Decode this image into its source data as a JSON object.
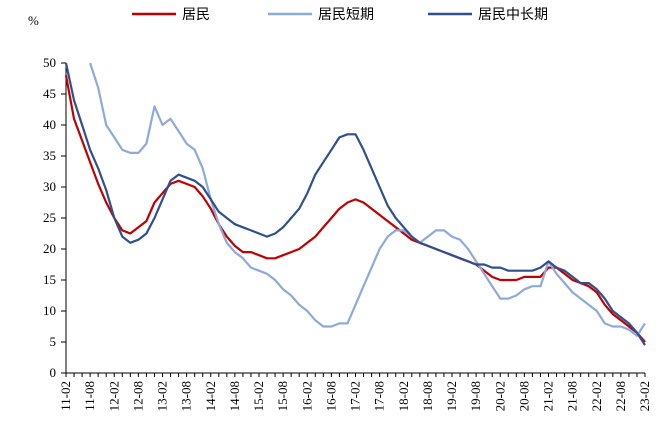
{
  "chart_data": {
    "type": "line",
    "title": "",
    "unit": "%",
    "xlabel": "",
    "ylabel": "",
    "ylim": [
      0,
      50
    ],
    "yticks": [
      0,
      5,
      10,
      15,
      20,
      25,
      30,
      35,
      40,
      45,
      50
    ],
    "x_start": "11-02",
    "x_end": "23-02",
    "xticks": [
      "11-02",
      "11-08",
      "12-02",
      "12-08",
      "13-02",
      "13-08",
      "14-02",
      "14-08",
      "15-02",
      "15-08",
      "16-02",
      "16-08",
      "17-02",
      "17-08",
      "18-02",
      "18-08",
      "19-02",
      "19-08",
      "20-02",
      "20-08",
      "21-02",
      "21-08",
      "22-02",
      "22-08",
      "23-02"
    ],
    "grid": false,
    "legend_position": "top",
    "series": [
      {
        "name": "居民",
        "color": "#c00000",
        "points": [
          [
            "11-02",
            48
          ],
          [
            "11-04",
            41
          ],
          [
            "11-06",
            37.5
          ],
          [
            "11-08",
            34
          ],
          [
            "11-10",
            30.5
          ],
          [
            "11-12",
            27.5
          ],
          [
            "12-02",
            25
          ],
          [
            "12-04",
            23
          ],
          [
            "12-06",
            22.5
          ],
          [
            "12-08",
            23.5
          ],
          [
            "12-10",
            24.5
          ],
          [
            "12-12",
            27.5
          ],
          [
            "13-02",
            29
          ],
          [
            "13-04",
            30.5
          ],
          [
            "13-06",
            31
          ],
          [
            "13-08",
            30.5
          ],
          [
            "13-10",
            30
          ],
          [
            "13-12",
            28.5
          ],
          [
            "14-02",
            26.5
          ],
          [
            "14-04",
            24
          ],
          [
            "14-06",
            22
          ],
          [
            "14-08",
            20.5
          ],
          [
            "14-10",
            19.5
          ],
          [
            "14-12",
            19.5
          ],
          [
            "15-02",
            19
          ],
          [
            "15-04",
            18.5
          ],
          [
            "15-06",
            18.5
          ],
          [
            "15-08",
            19
          ],
          [
            "15-10",
            19.5
          ],
          [
            "15-12",
            20
          ],
          [
            "16-02",
            21
          ],
          [
            "16-04",
            22
          ],
          [
            "16-06",
            23.5
          ],
          [
            "16-08",
            25
          ],
          [
            "16-10",
            26.5
          ],
          [
            "16-12",
            27.5
          ],
          [
            "17-02",
            28
          ],
          [
            "17-04",
            27.5
          ],
          [
            "17-06",
            26.5
          ],
          [
            "17-08",
            25.5
          ],
          [
            "17-10",
            24.5
          ],
          [
            "17-12",
            23.5
          ],
          [
            "18-02",
            22.5
          ],
          [
            "18-04",
            21.5
          ],
          [
            "18-06",
            21
          ],
          [
            "18-08",
            20.5
          ],
          [
            "18-10",
            20
          ],
          [
            "18-12",
            19.5
          ],
          [
            "19-02",
            19
          ],
          [
            "19-04",
            18.5
          ],
          [
            "19-06",
            18
          ],
          [
            "19-08",
            17.5
          ],
          [
            "19-10",
            16.5
          ],
          [
            "19-12",
            15.5
          ],
          [
            "20-02",
            15
          ],
          [
            "20-04",
            15
          ],
          [
            "20-06",
            15
          ],
          [
            "20-08",
            15.5
          ],
          [
            "20-10",
            15.5
          ],
          [
            "20-12",
            15.5
          ],
          [
            "21-02",
            17
          ],
          [
            "21-04",
            17
          ],
          [
            "21-06",
            16
          ],
          [
            "21-08",
            15
          ],
          [
            "21-10",
            14.5
          ],
          [
            "21-12",
            14
          ],
          [
            "22-02",
            13
          ],
          [
            "22-04",
            11
          ],
          [
            "22-06",
            9.5
          ],
          [
            "22-08",
            8.5
          ],
          [
            "22-10",
            7.5
          ],
          [
            "22-12",
            6.5
          ],
          [
            "23-02",
            5
          ]
        ]
      },
      {
        "name": "居民短期",
        "color": "#8ea9db",
        "points": [
          [
            "11-08",
            50
          ],
          [
            "11-10",
            46
          ],
          [
            "11-12",
            40
          ],
          [
            "12-02",
            38
          ],
          [
            "12-04",
            36
          ],
          [
            "12-06",
            35.5
          ],
          [
            "12-08",
            35.5
          ],
          [
            "12-10",
            37
          ],
          [
            "12-12",
            43
          ],
          [
            "13-02",
            40
          ],
          [
            "13-04",
            41
          ],
          [
            "13-06",
            39
          ],
          [
            "13-08",
            37
          ],
          [
            "13-10",
            36
          ],
          [
            "13-12",
            33
          ],
          [
            "14-02",
            28
          ],
          [
            "14-04",
            24
          ],
          [
            "14-06",
            21
          ],
          [
            "14-08",
            19.5
          ],
          [
            "14-10",
            18.5
          ],
          [
            "14-12",
            17
          ],
          [
            "15-02",
            16.5
          ],
          [
            "15-04",
            16
          ],
          [
            "15-06",
            15
          ],
          [
            "15-08",
            13.5
          ],
          [
            "15-10",
            12.5
          ],
          [
            "15-12",
            11
          ],
          [
            "16-02",
            10
          ],
          [
            "16-04",
            8.5
          ],
          [
            "16-06",
            7.5
          ],
          [
            "16-08",
            7.5
          ],
          [
            "16-10",
            8
          ],
          [
            "16-12",
            8
          ],
          [
            "17-02",
            11
          ],
          [
            "17-04",
            14
          ],
          [
            "17-06",
            17
          ],
          [
            "17-08",
            20
          ],
          [
            "17-10",
            22
          ],
          [
            "17-12",
            23
          ],
          [
            "18-02",
            23
          ],
          [
            "18-04",
            22
          ],
          [
            "18-06",
            21
          ],
          [
            "18-08",
            22
          ],
          [
            "18-10",
            23
          ],
          [
            "18-12",
            23
          ],
          [
            "19-02",
            22
          ],
          [
            "19-04",
            21.5
          ],
          [
            "19-06",
            20
          ],
          [
            "19-08",
            18
          ],
          [
            "19-10",
            16
          ],
          [
            "19-12",
            14
          ],
          [
            "20-02",
            12
          ],
          [
            "20-04",
            12
          ],
          [
            "20-06",
            12.5
          ],
          [
            "20-08",
            13.5
          ],
          [
            "20-10",
            14
          ],
          [
            "20-12",
            14
          ],
          [
            "21-02",
            18
          ],
          [
            "21-04",
            16
          ],
          [
            "21-06",
            14.5
          ],
          [
            "21-08",
            13
          ],
          [
            "21-10",
            12
          ],
          [
            "21-12",
            11
          ],
          [
            "22-02",
            10
          ],
          [
            "22-04",
            8
          ],
          [
            "22-06",
            7.5
          ],
          [
            "22-08",
            7.5
          ],
          [
            "22-10",
            7
          ],
          [
            "22-12",
            6
          ],
          [
            "23-02",
            8
          ]
        ]
      },
      {
        "name": "居民中长期",
        "color": "#2f4f8f",
        "points": [
          [
            "11-02",
            50
          ],
          [
            "11-04",
            44
          ],
          [
            "11-06",
            40
          ],
          [
            "11-08",
            36
          ],
          [
            "11-10",
            33
          ],
          [
            "11-12",
            29.5
          ],
          [
            "12-02",
            25
          ],
          [
            "12-04",
            22
          ],
          [
            "12-06",
            21
          ],
          [
            "12-08",
            21.5
          ],
          [
            "12-10",
            22.5
          ],
          [
            "12-12",
            25
          ],
          [
            "13-02",
            28
          ],
          [
            "13-04",
            31
          ],
          [
            "13-06",
            32
          ],
          [
            "13-08",
            31.5
          ],
          [
            "13-10",
            31
          ],
          [
            "13-12",
            30
          ],
          [
            "14-02",
            28
          ],
          [
            "14-04",
            26
          ],
          [
            "14-06",
            25
          ],
          [
            "14-08",
            24
          ],
          [
            "14-10",
            23.5
          ],
          [
            "14-12",
            23
          ],
          [
            "15-02",
            22.5
          ],
          [
            "15-04",
            22
          ],
          [
            "15-06",
            22.5
          ],
          [
            "15-08",
            23.5
          ],
          [
            "15-10",
            25
          ],
          [
            "15-12",
            26.5
          ],
          [
            "16-02",
            29
          ],
          [
            "16-04",
            32
          ],
          [
            "16-06",
            34
          ],
          [
            "16-08",
            36
          ],
          [
            "16-10",
            38
          ],
          [
            "16-12",
            38.5
          ],
          [
            "17-02",
            38.5
          ],
          [
            "17-04",
            36
          ],
          [
            "17-06",
            33
          ],
          [
            "17-08",
            30
          ],
          [
            "17-10",
            27
          ],
          [
            "17-12",
            25
          ],
          [
            "18-02",
            23.5
          ],
          [
            "18-04",
            22
          ],
          [
            "18-06",
            21
          ],
          [
            "18-08",
            20.5
          ],
          [
            "18-10",
            20
          ],
          [
            "18-12",
            19.5
          ],
          [
            "19-02",
            19
          ],
          [
            "19-04",
            18.5
          ],
          [
            "19-06",
            18
          ],
          [
            "19-08",
            17.5
          ],
          [
            "19-10",
            17.5
          ],
          [
            "19-12",
            17
          ],
          [
            "20-02",
            17
          ],
          [
            "20-04",
            16.5
          ],
          [
            "20-06",
            16.5
          ],
          [
            "20-08",
            16.5
          ],
          [
            "20-10",
            16.5
          ],
          [
            "20-12",
            17
          ],
          [
            "21-02",
            18
          ],
          [
            "21-04",
            17
          ],
          [
            "21-06",
            16.5
          ],
          [
            "21-08",
            15.5
          ],
          [
            "21-10",
            14.5
          ],
          [
            "21-12",
            14.5
          ],
          [
            "22-02",
            13.5
          ],
          [
            "22-04",
            12
          ],
          [
            "22-06",
            10
          ],
          [
            "22-08",
            9
          ],
          [
            "22-10",
            8
          ],
          [
            "22-12",
            6.5
          ],
          [
            "23-02",
            4.5
          ]
        ]
      }
    ]
  }
}
